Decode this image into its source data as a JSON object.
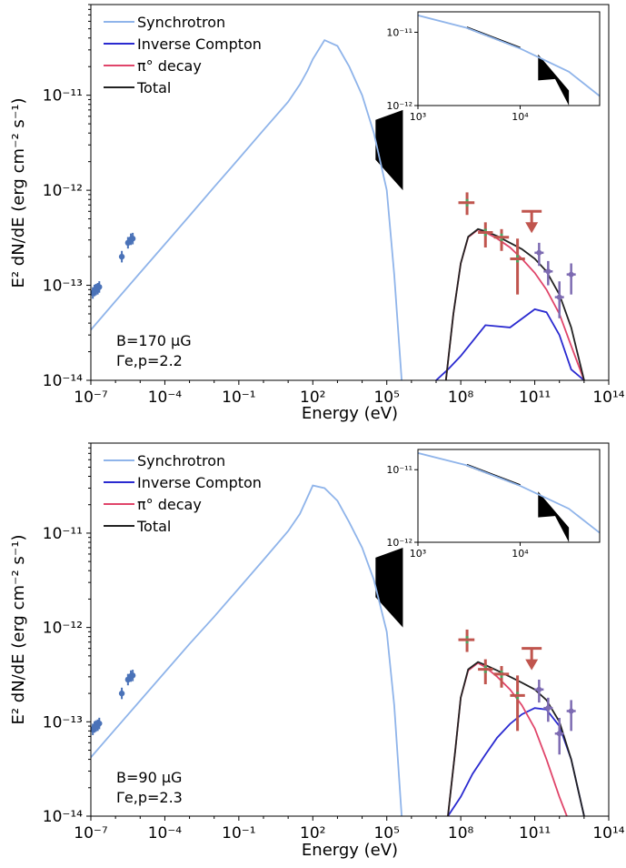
{
  "chart_data": [
    {
      "type": "line",
      "panel": "top",
      "xlabel": "Energy (eV)",
      "ylabel": "E² dN/dE (erg cm⁻² s⁻¹)",
      "x_scale": "log",
      "y_scale": "log",
      "xlim": [
        1e-07,
        100000000000000.0
      ],
      "ylim": [
        1e-14,
        9e-11
      ],
      "x_ticks": [
        "10⁻⁷",
        "10⁻⁴",
        "10⁻¹",
        "10²",
        "10⁵",
        "10⁸",
        "10¹¹",
        "10¹⁴"
      ],
      "y_ticks": [
        "10⁻¹⁴",
        "10⁻¹³",
        "10⁻¹²",
        "10⁻¹¹"
      ],
      "legend_position": "top-left",
      "annotation": [
        "B=170 μG",
        "Γe,p=2.2"
      ],
      "series": [
        {
          "name": "Synchrotron",
          "color": "#8fb4ea",
          "x": [
            1e-07,
            1e-06,
            1e-05,
            0.0001,
            0.001,
            0.01,
            0.1,
            1,
            10,
            30,
            60,
            100,
            300,
            1000,
            3000,
            10000,
            30000,
            100000,
            200000,
            400000
          ],
          "y": [
            3.4e-14,
            6.8e-14,
            1.36e-13,
            2.7e-13,
            5.4e-13,
            1.08e-12,
            2.15e-12,
            4.3e-12,
            8.5e-12,
            1.3e-11,
            1.8e-11,
            2.4e-11,
            3.8e-11,
            3.3e-11,
            2e-11,
            1e-11,
            4e-12,
            1e-12,
            1.3e-13,
            1e-14
          ]
        },
        {
          "name": "Inverse Compton",
          "color": "#2a2ad0",
          "x": [
            10000000.0,
            30000000.0,
            100000000.0,
            1000000000.0,
            10000000000.0,
            100000000000.0,
            300000000000.0,
            1000000000000.0,
            3000000000000.0,
            10000000000000.0
          ],
          "y": [
            1e-14,
            1.3e-14,
            1.8e-14,
            3.8e-14,
            3.6e-14,
            5.6e-14,
            5.2e-14,
            3e-14,
            1.3e-14,
            1e-14
          ]
        },
        {
          "name": "π° decay",
          "color": "#e0456a",
          "x": [
            25000000.0,
            50000000.0,
            100000000.0,
            200000000.0,
            500000000.0,
            1000000000.0,
            3000000000.0,
            10000000000.0,
            30000000000.0,
            100000000000.0,
            300000000000.0,
            1000000000000.0,
            3000000000000.0,
            10000000000000.0
          ],
          "y": [
            1e-14,
            5e-14,
            1.7e-13,
            3.2e-13,
            3.85e-13,
            3.6e-13,
            3.1e-13,
            2.5e-13,
            1.9e-13,
            1.35e-13,
            9e-14,
            5e-14,
            2.3e-14,
            1e-14
          ]
        },
        {
          "name": "Total",
          "color": "#222222",
          "x": [
            25000000.0,
            50000000.0,
            100000000.0,
            200000000.0,
            500000000.0,
            1000000000.0,
            3000000000.0,
            10000000000.0,
            30000000000.0,
            100000000000.0,
            300000000000.0,
            1000000000000.0,
            3000000000000.0,
            10000000000000.0
          ],
          "y": [
            1e-14,
            5e-14,
            1.7e-13,
            3.25e-13,
            3.9e-13,
            3.7e-13,
            3.3e-13,
            2.8e-13,
            2.4e-13,
            1.9e-13,
            1.4e-13,
            8e-14,
            3.6e-14,
            1e-14
          ]
        }
      ],
      "radio_points": {
        "color": "#4a72b8",
        "x": [
          1.2e-07,
          1.4e-07,
          1.6e-07,
          1.9e-07,
          2.2e-07,
          1.8e-06,
          3.2e-06,
          4.2e-06,
          5e-06
        ],
        "y": [
          8.3e-14,
          8.8e-14,
          9e-14,
          9.2e-14,
          9.6e-14,
          2e-13,
          2.8e-13,
          3.05e-13,
          3.1e-13
        ]
      },
      "xray_band": {
        "x": [
          35000.0,
          450000.0
        ],
        "ytop": [
          5.5e-12,
          7e-12
        ],
        "ybot": [
          2.1e-12,
          1e-12
        ]
      },
      "fermi_points": {
        "color": "#c0554e",
        "x": [
          180000000.0,
          1000000000.0,
          4500000000.0,
          20000000000.0
        ],
        "y": [
          7.4e-13,
          3.6e-13,
          3.2e-13,
          1.9e-13
        ],
        "ylo": [
          5.5e-13,
          2.5e-13,
          2.3e-13,
          8e-14
        ],
        "yhi": [
          9.5e-13,
          4.6e-13,
          3.9e-13,
          3.1e-13
        ],
        "xlo": [
          80000000.0,
          500000000.0,
          2200000000.0,
          10000000000.0
        ],
        "xhi": [
          360000000.0,
          2000000000.0,
          9000000000.0,
          40000000000.0
        ],
        "upper_limit_x": 75000000000.0,
        "upper_limit_y": 6e-13
      },
      "tev_points": {
        "color": "#7d6bb2",
        "x": [
          150000000000.0,
          350000000000.0,
          1000000000000.0,
          3000000000000.0
        ],
        "y": [
          2.2e-13,
          1.4e-13,
          7.5e-14,
          1.3e-13
        ],
        "ylo": [
          1.6e-13,
          1e-13,
          4.5e-14,
          8e-14
        ],
        "yhi": [
          2.8e-13,
          1.8e-13,
          1.1e-13,
          1.7e-13
        ]
      },
      "inset": {
        "xlim": [
          1000.0,
          60000.0
        ],
        "ylim": [
          1e-12,
          1.9e-11
        ],
        "x_ticks": [
          "10³",
          "10⁴"
        ],
        "y_ticks": [
          "10⁻¹²",
          "10⁻¹¹"
        ],
        "sync_x": [
          1000.0,
          3000.0,
          10000.0,
          30000.0,
          60000.0
        ],
        "sync_y": [
          1.7e-11,
          1.15e-11,
          6e-12,
          2.9e-12,
          1.35e-12
        ]
      }
    },
    {
      "type": "line",
      "panel": "bottom",
      "xlabel": "Energy (eV)",
      "ylabel": "E² dN/dE (erg cm⁻² s⁻¹)",
      "x_scale": "log",
      "y_scale": "log",
      "xlim": [
        1e-07,
        100000000000000.0
      ],
      "ylim": [
        1e-14,
        9e-11
      ],
      "x_ticks": [
        "10⁻⁷",
        "10⁻⁴",
        "10⁻¹",
        "10²",
        "10⁵",
        "10⁸",
        "10¹¹",
        "10¹⁴"
      ],
      "y_ticks": [
        "10⁻¹⁴",
        "10⁻¹³",
        "10⁻¹²",
        "10⁻¹¹"
      ],
      "legend_position": "top-left",
      "annotation": [
        "B=90 μG",
        "Γe,p=2.3"
      ],
      "series": [
        {
          "name": "Synchrotron",
          "color": "#8fb4ea",
          "x": [
            1e-07,
            1e-06,
            1e-05,
            0.0001,
            0.001,
            0.01,
            0.1,
            1,
            10,
            30,
            100,
            300,
            1000,
            3000,
            10000,
            30000,
            100000,
            200000,
            400000
          ],
          "y": [
            4.2e-14,
            8.4e-14,
            1.68e-13,
            3.35e-13,
            6.7e-13,
            1.3e-12,
            2.6e-12,
            5.2e-12,
            1.05e-11,
            1.6e-11,
            3.2e-11,
            3e-11,
            2.2e-11,
            1.3e-11,
            7e-12,
            3.2e-12,
            9e-13,
            1.5e-13,
            1e-14
          ]
        },
        {
          "name": "Inverse Compton",
          "color": "#2a2ad0",
          "x": [
            30000000.0,
            100000000.0,
            300000000.0,
            1000000000.0,
            3000000000.0,
            10000000000.0,
            30000000000.0,
            100000000000.0,
            300000000000.0,
            1000000000000.0,
            3000000000000.0,
            10000000000000.0
          ],
          "y": [
            1e-14,
            1.6e-14,
            2.8e-14,
            4.5e-14,
            6.8e-14,
            9.5e-14,
            1.2e-13,
            1.4e-13,
            1.35e-13,
            9e-14,
            4e-14,
            1e-14
          ]
        },
        {
          "name": "π° decay",
          "color": "#e0456a",
          "x": [
            30000000.0,
            60000000.0,
            100000000.0,
            200000000.0,
            500000000.0,
            1000000000.0,
            3000000000.0,
            10000000000.0,
            30000000000.0,
            100000000000.0,
            300000000000.0,
            1000000000000.0,
            2000000000000.0
          ],
          "y": [
            1e-14,
            5e-14,
            1.8e-13,
            3.5e-13,
            4.2e-13,
            3.8e-13,
            3e-13,
            2.2e-13,
            1.5e-13,
            8.5e-14,
            4e-14,
            1.6e-14,
            1e-14
          ]
        },
        {
          "name": "Total",
          "color": "#222222",
          "x": [
            30000000.0,
            60000000.0,
            100000000.0,
            200000000.0,
            500000000.0,
            1000000000.0,
            3000000000.0,
            10000000000.0,
            30000000000.0,
            100000000000.0,
            300000000000.0,
            1000000000000.0,
            3000000000000.0,
            10000000000000.0
          ],
          "y": [
            1e-14,
            5e-14,
            1.8e-13,
            3.6e-13,
            4.3e-13,
            4e-13,
            3.5e-13,
            3e-13,
            2.6e-13,
            2.2e-13,
            1.7e-13,
            1e-13,
            4e-14,
            1e-14
          ]
        }
      ],
      "radio_points": {
        "color": "#4a72b8",
        "x": [
          1.2e-07,
          1.4e-07,
          1.6e-07,
          1.9e-07,
          2.2e-07,
          1.8e-06,
          3.2e-06,
          4.2e-06,
          5e-06
        ],
        "y": [
          8.3e-14,
          8.8e-14,
          9e-14,
          9.2e-14,
          9.6e-14,
          2e-13,
          2.8e-13,
          3.05e-13,
          3.1e-13
        ]
      },
      "xray_band": {
        "x": [
          35000.0,
          450000.0
        ],
        "ytop": [
          5.5e-12,
          7e-12
        ],
        "ybot": [
          2.1e-12,
          1e-12
        ]
      },
      "fermi_points": {
        "color": "#c0554e",
        "x": [
          180000000.0,
          1000000000.0,
          4500000000.0,
          20000000000.0
        ],
        "y": [
          7.4e-13,
          3.6e-13,
          3.2e-13,
          1.9e-13
        ],
        "ylo": [
          5.5e-13,
          2.5e-13,
          2.3e-13,
          8e-14
        ],
        "yhi": [
          9.5e-13,
          4.6e-13,
          3.9e-13,
          3.1e-13
        ],
        "xlo": [
          80000000.0,
          500000000.0,
          2200000000.0,
          10000000000.0
        ],
        "xhi": [
          360000000.0,
          2000000000.0,
          9000000000.0,
          40000000000.0
        ],
        "upper_limit_x": 75000000000.0,
        "upper_limit_y": 6e-13
      },
      "tev_points": {
        "color": "#7d6bb2",
        "x": [
          150000000000.0,
          350000000000.0,
          1000000000000.0,
          3000000000000.0
        ],
        "y": [
          2.2e-13,
          1.4e-13,
          7.5e-14,
          1.3e-13
        ],
        "ylo": [
          1.6e-13,
          1e-13,
          4.5e-14,
          8e-14
        ],
        "yhi": [
          2.8e-13,
          1.8e-13,
          1.1e-13,
          1.7e-13
        ]
      },
      "inset": {
        "xlim": [
          1000.0,
          60000.0
        ],
        "ylim": [
          1e-12,
          1.9e-11
        ],
        "x_ticks": [
          "10³",
          "10⁴"
        ],
        "y_ticks": [
          "10⁻¹²",
          "10⁻¹¹"
        ],
        "sync_x": [
          1000.0,
          3000.0,
          10000.0,
          30000.0,
          60000.0
        ],
        "sync_y": [
          1.7e-11,
          1.15e-11,
          6e-12,
          2.9e-12,
          1.35e-12
        ]
      }
    }
  ]
}
